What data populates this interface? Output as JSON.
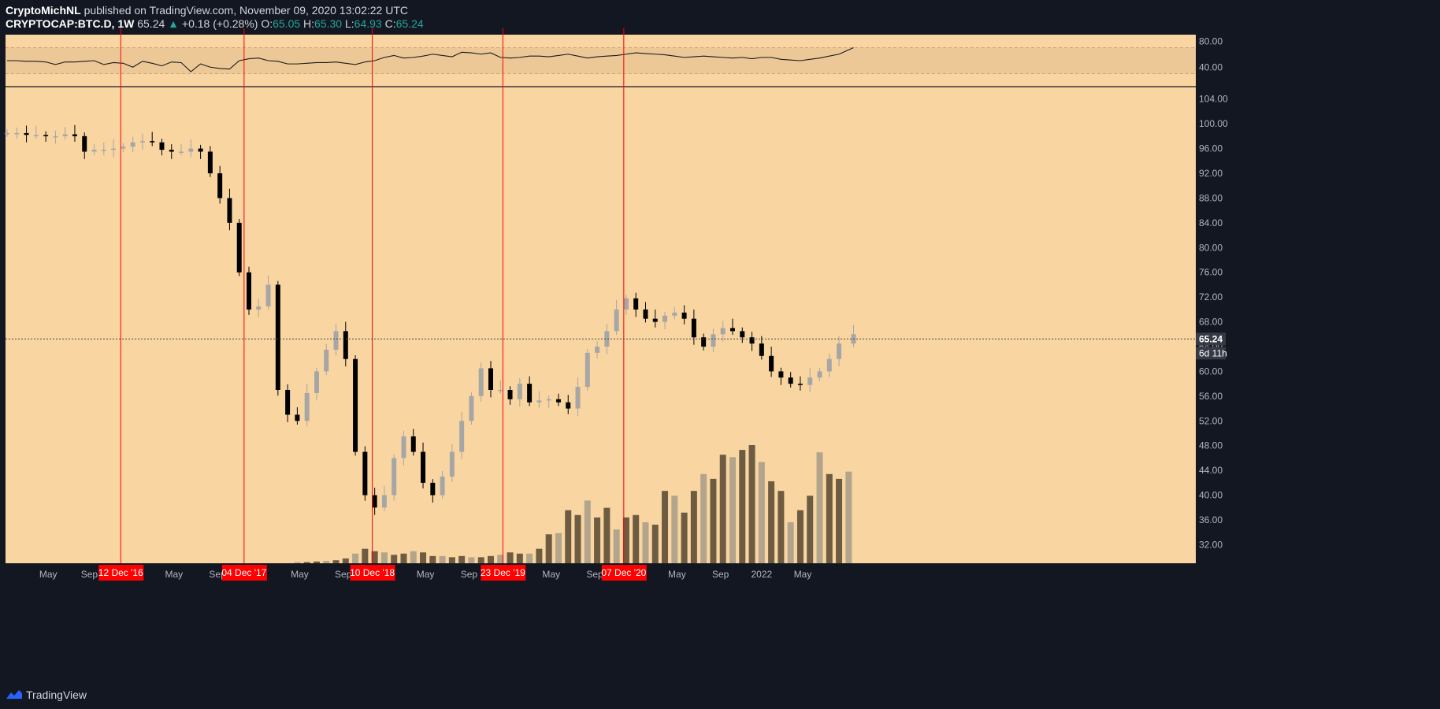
{
  "header": {
    "author": "CryptoMichNL",
    "published_text": "published on TradingView.com, November 09, 2020 13:02:22 UTC",
    "symbol": "CRYPTOCAP:BTC.D, 1W",
    "last": "65.24",
    "change": "+0.18 (+0.28%)",
    "o_label": "O:",
    "o": "65.05",
    "h_label": "H:",
    "h": "65.30",
    "l_label": "L:",
    "l": "64.93",
    "c_label": "C:",
    "c": "65.24"
  },
  "footer": {
    "brand": "TradingView",
    "brand_icon": "tradingview-logo-icon"
  },
  "colors": {
    "background": "#131722",
    "plot": "#f9d5a1",
    "rsi_band": "#ecc897",
    "up_candle": "#a6a6a6",
    "down_candle": "#000000",
    "volume_up": "#b3a48c",
    "volume_down": "#6e5c42",
    "marker_line": "#ff0000",
    "marker_label_bg": "#ff0000",
    "price_label_bg": "#363a45"
  },
  "chart_data": [
    {
      "type": "line",
      "name": "RSI panel",
      "ylim": [
        10,
        90
      ],
      "yticks": [
        "80.00",
        "40.00"
      ],
      "band": [
        30,
        70
      ],
      "x_weeks": [
        0,
        4,
        8,
        12,
        16,
        20,
        24,
        28,
        32,
        36,
        40,
        44,
        48,
        52,
        56,
        60,
        64,
        68,
        72,
        76,
        80,
        84,
        88,
        92,
        96,
        100,
        104,
        108,
        112,
        116,
        120,
        124,
        128,
        132,
        136,
        140,
        144,
        148,
        152,
        156,
        160,
        164,
        168,
        172,
        176,
        180,
        184,
        188,
        192,
        196,
        200,
        204,
        208,
        212,
        216,
        220,
        224,
        228,
        232,
        236,
        240,
        244,
        248,
        252,
        256,
        260,
        264,
        268,
        272,
        276,
        280,
        284,
        288,
        292,
        296,
        300,
        304,
        308,
        312,
        316,
        320,
        324,
        328,
        332,
        336,
        340,
        344,
        350
      ],
      "values": [
        50,
        50,
        49,
        49,
        48,
        44,
        48,
        48,
        49,
        50,
        44,
        47,
        46,
        40,
        49,
        46,
        42,
        48,
        47,
        33,
        45,
        40,
        38,
        37,
        50,
        53,
        54,
        50,
        49,
        45,
        45,
        46,
        47,
        47,
        48,
        46,
        44,
        48,
        50,
        55,
        58,
        54,
        55,
        57,
        60,
        58,
        56,
        63,
        62,
        60,
        62,
        55,
        54,
        55,
        57,
        57,
        56,
        58,
        60,
        57,
        54,
        56,
        57,
        58,
        60,
        62,
        61,
        60,
        59,
        57,
        55,
        56,
        57,
        56,
        55,
        54,
        55,
        53,
        55,
        55,
        52,
        51,
        50,
        52,
        54,
        57,
        60,
        70
      ]
    },
    {
      "type": "candlestick",
      "name": "BTC.D weekly",
      "ylim": [
        29,
        106
      ],
      "yticks": [
        "104.00",
        "100.00",
        "96.00",
        "92.00",
        "88.00",
        "84.00",
        "80.00",
        "76.00",
        "72.00",
        "68.00",
        "64.00",
        "60.00",
        "56.00",
        "52.00",
        "48.00",
        "44.00",
        "40.00",
        "36.00",
        "32.00"
      ],
      "last_price": "65.24",
      "countdown": "6d 11h",
      "x_weeks": [
        0,
        4,
        8,
        12,
        16,
        20,
        24,
        28,
        32,
        36,
        40,
        44,
        48,
        52,
        56,
        60,
        64,
        68,
        72,
        76,
        80,
        84,
        88,
        92,
        96,
        100,
        104,
        108,
        112,
        116,
        120,
        124,
        128,
        132,
        136,
        140,
        144,
        148,
        152,
        156,
        160,
        164,
        168,
        172,
        176,
        180,
        184,
        188,
        192,
        196,
        200,
        204,
        208,
        212,
        216,
        220,
        224,
        228,
        232,
        236,
        240,
        244,
        248,
        252,
        256,
        260,
        264,
        268,
        272,
        276,
        280,
        284,
        288,
        292,
        296,
        300,
        304,
        308,
        312,
        316,
        320,
        324,
        328,
        332,
        336,
        340,
        344,
        350
      ],
      "close": [
        98.5,
        98.5,
        98.2,
        98.2,
        98.0,
        98.0,
        98.3,
        98.0,
        95.5,
        95.8,
        95.8,
        96.0,
        96.3,
        97.0,
        97.2,
        97.0,
        95.8,
        95.5,
        95.5,
        96.0,
        95.5,
        92.0,
        88.0,
        84.0,
        76.0,
        70.0,
        70.5,
        74.0,
        57.0,
        53.0,
        52.0,
        56.5,
        60.0,
        63.5,
        66.5,
        62.0,
        47.0,
        40.0,
        38.0,
        40.0,
        46.0,
        49.5,
        47.0,
        42.0,
        40.0,
        43.0,
        47.0,
        52.0,
        56.0,
        60.5,
        57.0,
        57.0,
        55.5,
        58.0,
        55.0,
        55.3,
        55.5,
        55.0,
        54.0,
        57.5,
        63.0,
        64.0,
        66.5,
        70.0,
        71.8,
        70.0,
        68.5,
        68.0,
        69.0,
        69.5,
        68.5,
        65.5,
        64.0,
        66.0,
        67.0,
        66.5,
        65.5,
        64.5,
        62.5,
        60.0,
        59.0,
        58.0,
        57.8,
        59.0,
        60.0,
        62.0,
        64.5,
        66.0
      ]
    },
    {
      "type": "bar",
      "name": "Volume",
      "x_weeks": [
        120,
        124,
        128,
        132,
        136,
        140,
        144,
        148,
        152,
        156,
        160,
        164,
        168,
        172,
        176,
        180,
        184,
        188,
        192,
        196,
        200,
        204,
        208,
        212,
        216,
        220,
        224,
        228,
        232,
        236,
        240,
        244,
        248,
        252,
        256,
        260,
        264,
        268,
        272,
        276,
        280,
        284,
        288,
        292,
        296,
        300,
        304,
        308,
        312,
        316,
        320,
        324,
        328,
        332,
        336,
        340,
        344,
        348
      ],
      "values": [
        1,
        1,
        1.5,
        2,
        2.5,
        4,
        8,
        12,
        10,
        9,
        7,
        8,
        10,
        9,
        6,
        6,
        5,
        6,
        5,
        5,
        6,
        7,
        9,
        8,
        8,
        12,
        24,
        25,
        44,
        40,
        52,
        38,
        46,
        28,
        38,
        40,
        34,
        32,
        60,
        56,
        42,
        60,
        74,
        70,
        90,
        88,
        94,
        98,
        84,
        68,
        60,
        34,
        44,
        56,
        92,
        74,
        70,
        76
      ]
    }
  ],
  "x_axis": {
    "ticks": [
      {
        "label": "May",
        "w": 17
      },
      {
        "label": "Sep",
        "w": 34
      },
      {
        "label": "May",
        "w": 69
      },
      {
        "label": "Sep",
        "w": 87
      },
      {
        "label": "May",
        "w": 121
      },
      {
        "label": "Sep",
        "w": 139
      },
      {
        "label": "May",
        "w": 173
      },
      {
        "label": "Sep",
        "w": 191
      },
      {
        "label": "May",
        "w": 225
      },
      {
        "label": "Sep",
        "w": 243
      },
      {
        "label": "May",
        "w": 277
      },
      {
        "label": "Sep",
        "w": 295
      },
      {
        "label": "2022",
        "w": 312
      },
      {
        "label": "May",
        "w": 329
      }
    ],
    "markers": [
      {
        "label": "12 Dec '16",
        "w": 47
      },
      {
        "label": "04 Dec '17",
        "w": 98
      },
      {
        "label": "10 Dec '18",
        "w": 151
      },
      {
        "label": "23 Dec '19",
        "w": 205
      },
      {
        "label": "07 Dec '20",
        "w": 255
      }
    ]
  }
}
